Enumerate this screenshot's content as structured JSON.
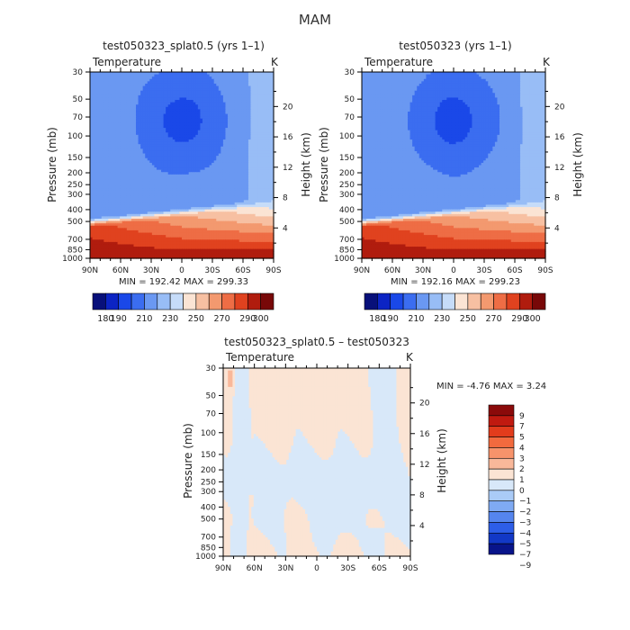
{
  "page_title": "MAM",
  "panels": [
    {
      "title": "test050323_splat0.5 (yrs 1–1)",
      "subtitle": "Temperature",
      "units": "K",
      "ylabel": "Pressure (mb)",
      "y2label": "Height (km)",
      "min_max_text": "MIN = 192.42   MAX = 299.33"
    },
    {
      "title": "test050323 (yrs 1–1)",
      "subtitle": "Temperature",
      "units": "K",
      "ylabel": "Pressure (mb)",
      "y2label": "Height (km)",
      "min_max_text": "MIN = 192.16   MAX = 299.23"
    },
    {
      "title": "test050323_splat0.5 – test050323",
      "subtitle": "Temperature",
      "units": "K",
      "ylabel": "Pressure (mb)",
      "y2label": "Height (km)",
      "min_max_text": "MIN =   -4.76   MAX =    3.24"
    }
  ],
  "chart_data": [
    {
      "type": "heatmap",
      "title": "test050323_splat0.5 (yrs 1–1)",
      "variable": "Temperature",
      "units": "K",
      "x_ticks": [
        "90N",
        "60N",
        "30N",
        "0",
        "30S",
        "60S",
        "90S"
      ],
      "p_ticks": [
        30,
        50,
        70,
        100,
        150,
        200,
        250,
        300,
        400,
        500,
        700,
        850,
        1000
      ],
      "height_ticks": [
        4,
        8,
        12,
        16,
        20
      ],
      "levels": [
        180,
        190,
        200,
        210,
        220,
        230,
        240,
        250,
        260,
        270,
        280,
        290,
        300
      ],
      "colorbar_labels": [
        "180",
        "190",
        "210",
        "230",
        "250",
        "270",
        "290",
        "300"
      ],
      "min": 192.42,
      "max": 299.33
    },
    {
      "type": "heatmap",
      "title": "test050323 (yrs 1–1)",
      "variable": "Temperature",
      "units": "K",
      "x_ticks": [
        "90N",
        "60N",
        "30N",
        "0",
        "30S",
        "60S",
        "90S"
      ],
      "p_ticks": [
        30,
        50,
        70,
        100,
        150,
        200,
        250,
        300,
        400,
        500,
        700,
        850,
        1000
      ],
      "height_ticks": [
        4,
        8,
        12,
        16,
        20
      ],
      "levels": [
        180,
        190,
        200,
        210,
        220,
        230,
        240,
        250,
        260,
        270,
        280,
        290,
        300
      ],
      "colorbar_labels": [
        "180",
        "190",
        "210",
        "230",
        "250",
        "270",
        "290",
        "300"
      ],
      "min": 192.16,
      "max": 299.23
    },
    {
      "type": "heatmap",
      "title": "test050323_splat0.5 – test050323",
      "variable": "Temperature",
      "units": "K",
      "x_ticks": [
        "90N",
        "60N",
        "30N",
        "0",
        "30S",
        "60S",
        "90S"
      ],
      "p_ticks": [
        30,
        50,
        70,
        100,
        150,
        200,
        250,
        300,
        400,
        500,
        700,
        850,
        1000
      ],
      "height_ticks": [
        4,
        8,
        12,
        16,
        20
      ],
      "levels": [
        -9,
        -7,
        -5,
        -4,
        -3,
        -2,
        -1,
        0,
        1,
        2,
        3,
        4,
        5,
        7,
        9
      ],
      "colorbar_labels": [
        "9",
        "7",
        "5",
        "4",
        "3",
        "2",
        "1",
        "0",
        "−1",
        "−2",
        "−3",
        "−4",
        "−5",
        "−7",
        "−9"
      ],
      "min": -4.76,
      "max": 3.24
    }
  ],
  "palette_abs": [
    "#08107a",
    "#0c24c4",
    "#1a48e8",
    "#3b6df0",
    "#6a98f2",
    "#98bdf6",
    "#c6dcf9",
    "#fbe4d4",
    "#f7c0a2",
    "#f3996f",
    "#ee6d45",
    "#e0421f",
    "#b01c0e",
    "#780808"
  ],
  "palette_diff": [
    "#8b0a0a",
    "#c01a10",
    "#e23c1c",
    "#f26a3e",
    "#f7936b",
    "#f9b89a",
    "#fbe4d4",
    "#d8e8f9",
    "#aacbf7",
    "#7faaf3",
    "#5585ee",
    "#2d5ee8",
    "#1238c6",
    "#08148a"
  ]
}
